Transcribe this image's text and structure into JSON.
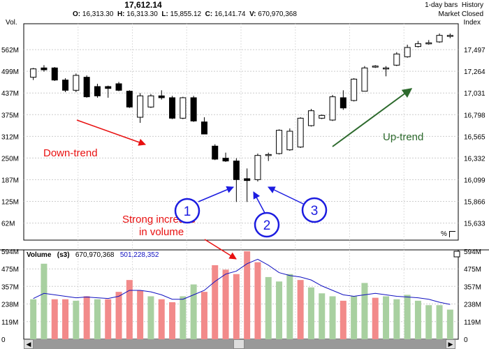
{
  "header": {
    "price": "17,612.14",
    "open_label": "O:",
    "open": "16,313.30",
    "high_label": "H:",
    "high": "16,313.30",
    "low_label": "L:",
    "low": "15,855.12",
    "close_label": "C:",
    "close": "16,141.74",
    "vol_label": "V:",
    "volume": "670,970,368",
    "bars_label": "1-day bars",
    "history_label": "History",
    "status": "Market Closed",
    "vol_axis_label": "Vol.",
    "index_axis_label": "Index"
  },
  "volume_panel": {
    "title": "Volume",
    "period": "(s3)",
    "current": "670,970,368",
    "average": "501,228,352"
  },
  "percent_label": "%",
  "annotations": {
    "down_trend": "Down-trend",
    "up_trend": "Up-trend",
    "strong_increase_line1": "Strong increase",
    "strong_increase_line2": "in volume",
    "marker1": "1",
    "marker2": "2",
    "marker3": "3"
  },
  "colors": {
    "down_trend_arrow": "#e81010",
    "up_trend_arrow": "#2d6a2d",
    "marker_arrow": "#1c1ce0",
    "volume_up": "#a8d0a0",
    "volume_down": "#f28a8a",
    "volume_avg_line": "#1010c0"
  },
  "chart_data": [
    {
      "type": "candlestick",
      "ylim": [
        15450,
        17700
      ],
      "left_ticks": [
        "562M",
        "499M",
        "437M",
        "375M",
        "312M",
        "250M",
        "187M",
        "125M",
        "62M"
      ],
      "right_ticks": [
        17497,
        17264,
        17031,
        16798,
        16565,
        16332,
        16099,
        15866,
        15633
      ],
      "right_tick_labels": [
        "17,497",
        "17,264",
        "17,031",
        "16,798",
        "16,565",
        "16,332",
        "16,099",
        "15,866",
        "15,633"
      ],
      "candles": [
        {
          "o": 17200,
          "h": 17300,
          "l": 17170,
          "c": 17290
        },
        {
          "o": 17300,
          "h": 17330,
          "l": 17260,
          "c": 17280
        },
        {
          "o": 17300,
          "h": 17310,
          "l": 17160,
          "c": 17170
        },
        {
          "o": 17170,
          "h": 17190,
          "l": 17040,
          "c": 17060
        },
        {
          "o": 17060,
          "h": 17240,
          "l": 17040,
          "c": 17220
        },
        {
          "o": 17200,
          "h": 17220,
          "l": 16980,
          "c": 16990
        },
        {
          "o": 17100,
          "h": 17130,
          "l": 16980,
          "c": 17000
        },
        {
          "o": 17100,
          "h": 17110,
          "l": 16980,
          "c": 17080
        },
        {
          "o": 17130,
          "h": 17150,
          "l": 17050,
          "c": 17060
        },
        {
          "o": 17050,
          "h": 17060,
          "l": 16870,
          "c": 16880
        },
        {
          "o": 16770,
          "h": 17030,
          "l": 16710,
          "c": 17000
        },
        {
          "o": 16880,
          "h": 17020,
          "l": 16870,
          "c": 17000
        },
        {
          "o": 17000,
          "h": 17060,
          "l": 16960,
          "c": 16980
        },
        {
          "o": 16980,
          "h": 17000,
          "l": 16750,
          "c": 16760
        },
        {
          "o": 16760,
          "h": 16990,
          "l": 16750,
          "c": 16980
        },
        {
          "o": 16980,
          "h": 17000,
          "l": 16720,
          "c": 16730
        },
        {
          "o": 16720,
          "h": 16770,
          "l": 16590,
          "c": 16590
        },
        {
          "o": 16460,
          "h": 16480,
          "l": 16310,
          "c": 16320
        },
        {
          "o": 16330,
          "h": 16390,
          "l": 16290,
          "c": 16300
        },
        {
          "o": 16300,
          "h": 16330,
          "l": 15860,
          "c": 16100
        },
        {
          "o": 16110,
          "h": 16220,
          "l": 15860,
          "c": 16090
        },
        {
          "o": 16100,
          "h": 16380,
          "l": 16080,
          "c": 16360
        },
        {
          "o": 16360,
          "h": 16390,
          "l": 16300,
          "c": 16370
        },
        {
          "o": 16380,
          "h": 16640,
          "l": 16370,
          "c": 16630
        },
        {
          "o": 16420,
          "h": 16650,
          "l": 16410,
          "c": 16620
        },
        {
          "o": 16450,
          "h": 16770,
          "l": 16440,
          "c": 16760
        },
        {
          "o": 16680,
          "h": 16860,
          "l": 16670,
          "c": 16840
        },
        {
          "o": 16760,
          "h": 16800,
          "l": 16750,
          "c": 16790
        },
        {
          "o": 16740,
          "h": 17010,
          "l": 16730,
          "c": 16990
        },
        {
          "o": 16980,
          "h": 17060,
          "l": 16850,
          "c": 16870
        },
        {
          "o": 16950,
          "h": 17190,
          "l": 16940,
          "c": 17180
        },
        {
          "o": 17050,
          "h": 17320,
          "l": 17050,
          "c": 17300
        },
        {
          "o": 17310,
          "h": 17330,
          "l": 17300,
          "c": 17320
        },
        {
          "o": 17300,
          "h": 17320,
          "l": 17210,
          "c": 17300
        },
        {
          "o": 17330,
          "h": 17470,
          "l": 17320,
          "c": 17450
        },
        {
          "o": 17420,
          "h": 17550,
          "l": 17410,
          "c": 17520
        },
        {
          "o": 17530,
          "h": 17590,
          "l": 17520,
          "c": 17560
        },
        {
          "o": 17560,
          "h": 17600,
          "l": 17550,
          "c": 17570
        },
        {
          "o": 17580,
          "h": 17670,
          "l": 17570,
          "c": 17650
        },
        {
          "o": 17640,
          "h": 17670,
          "l": 17620,
          "c": 17650
        }
      ]
    },
    {
      "type": "bar",
      "ylim": [
        0,
        594
      ],
      "ticks": [
        "594M",
        "475M",
        "357M",
        "238M",
        "119M",
        "0"
      ],
      "values": [
        270,
        510,
        270,
        270,
        260,
        290,
        270,
        270,
        320,
        400,
        330,
        290,
        270,
        250,
        290,
        370,
        320,
        500,
        470,
        440,
        594,
        520,
        420,
        390,
        440,
        400,
        350,
        310,
        290,
        260,
        290,
        380,
        280,
        290,
        270,
        300,
        260,
        230,
        230,
        200
      ],
      "up": [
        true,
        true,
        false,
        false,
        true,
        false,
        true,
        false,
        false,
        false,
        false,
        true,
        false,
        false,
        true,
        true,
        false,
        false,
        false,
        false,
        false,
        false,
        true,
        true,
        true,
        false,
        true,
        true,
        true,
        false,
        true,
        true,
        false,
        true,
        true,
        true,
        true,
        true,
        true,
        true
      ],
      "average": [
        275,
        310,
        300,
        290,
        280,
        285,
        280,
        275,
        290,
        330,
        330,
        320,
        300,
        270,
        270,
        300,
        330,
        390,
        440,
        460,
        510,
        540,
        500,
        450,
        430,
        420,
        400,
        360,
        330,
        300,
        290,
        300,
        310,
        300,
        290,
        285,
        280,
        270,
        250,
        235
      ]
    }
  ]
}
